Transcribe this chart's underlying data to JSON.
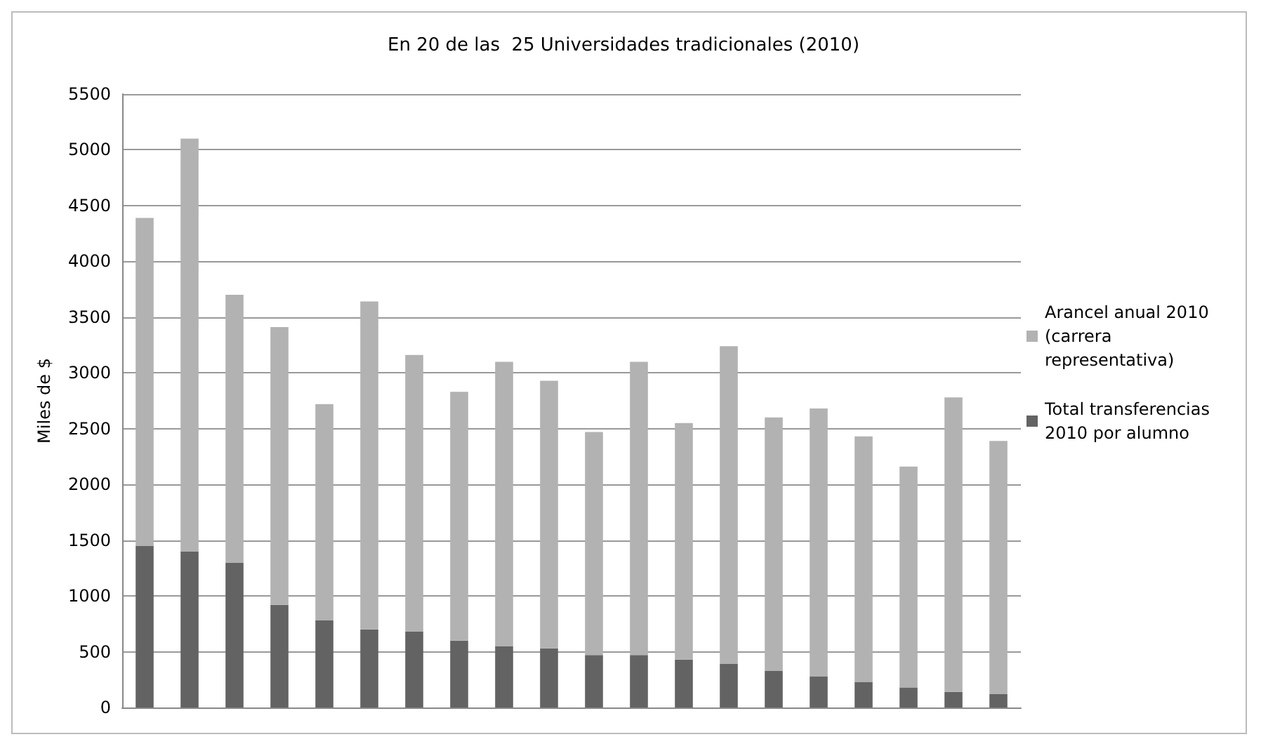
{
  "chart_data": {
    "type": "bar",
    "title": "En 20 de las  25 Universidades tradicionales (2010)",
    "ylabel": "Miles de $",
    "stacked": true,
    "categories": [
      null,
      null,
      null,
      null,
      null,
      null,
      null,
      null,
      null,
      null,
      null,
      null,
      null,
      null,
      null,
      null,
      null,
      null,
      null,
      null
    ],
    "series": [
      {
        "name": "Total transferencias 2010 por alumno",
        "color": "#636363",
        "values": [
          1450,
          1400,
          1300,
          920,
          780,
          700,
          680,
          600,
          550,
          530,
          470,
          470,
          430,
          390,
          330,
          280,
          230,
          180,
          140,
          120
        ]
      },
      {
        "name": "Arancel anual 2010 (carrera representativa)",
        "color": "#b2b2b2",
        "values": [
          2940,
          3700,
          2400,
          2490,
          1940,
          2940,
          2480,
          2230,
          2550,
          2400,
          2000,
          2630,
          2120,
          2850,
          2270,
          2400,
          2200,
          1980,
          2640,
          2270
        ]
      }
    ],
    "ylim": [
      0,
      5500
    ],
    "yticks": [
      0,
      500,
      1000,
      1500,
      2000,
      2500,
      3000,
      3500,
      4000,
      4500,
      5000,
      5500
    ],
    "grid": "y",
    "legend": "right"
  }
}
